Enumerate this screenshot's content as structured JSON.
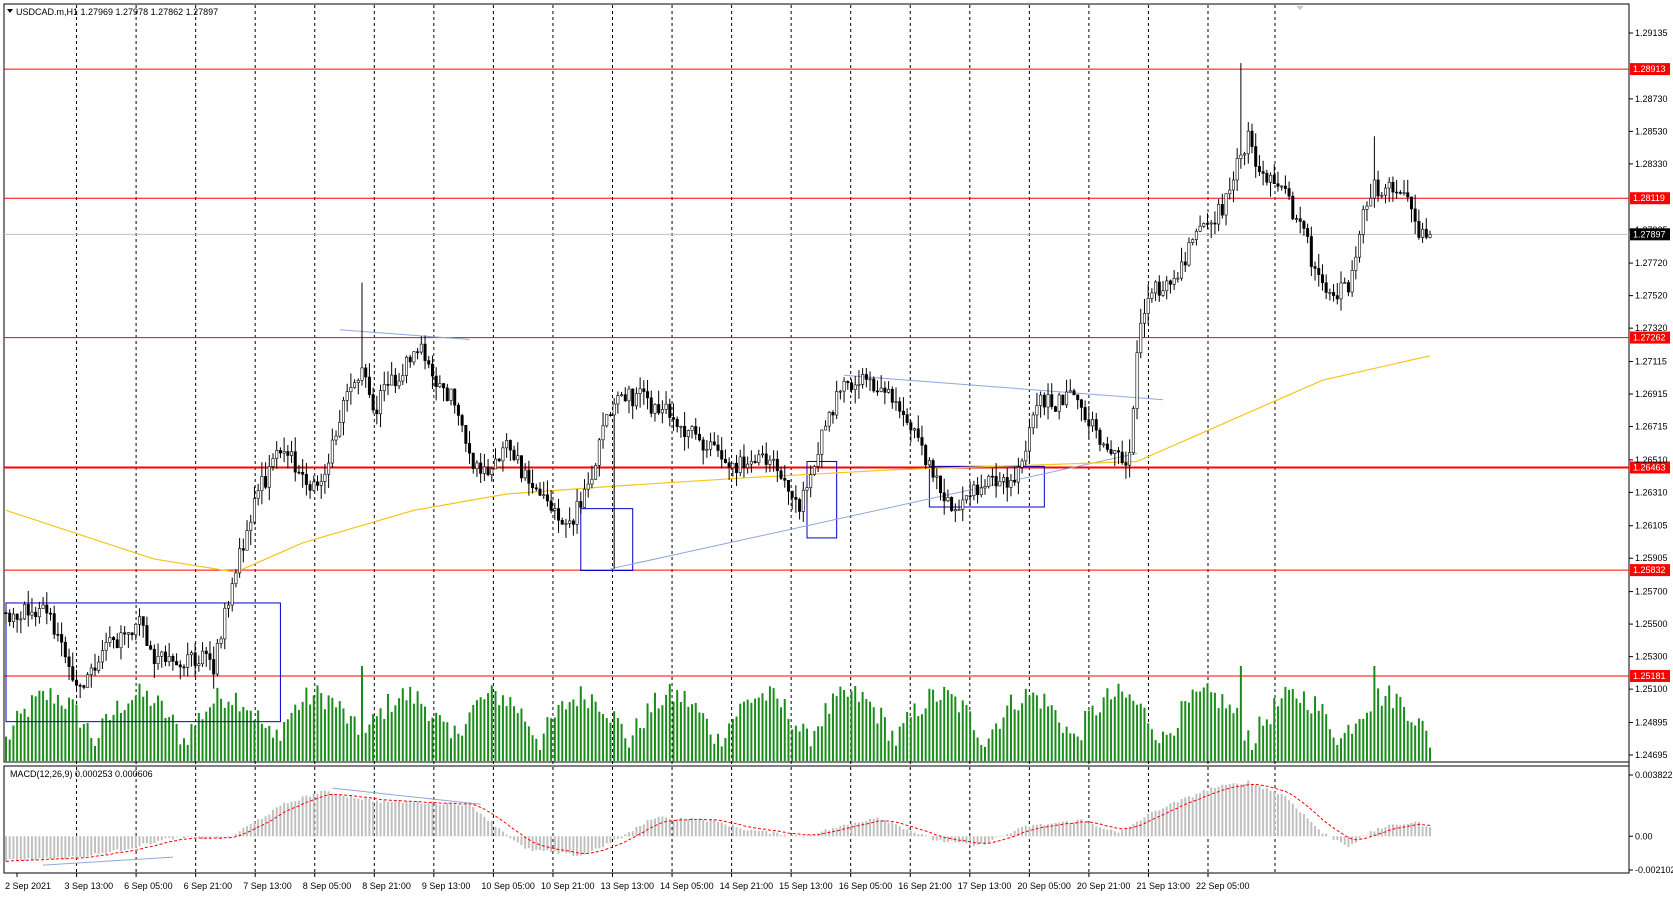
{
  "header": {
    "symbol_line": "USDCAD.m,H1  1.27969 1.27978 1.27862 1.27897",
    "macd_label": "MACD(12,26,9) 0.000253 0.000606"
  },
  "colors": {
    "level_line": "#ff0000",
    "bull_volume": "#1a8c1a",
    "candle": "#000000",
    "ma_line": "#f5c518",
    "box": "#0000cc",
    "trendline": "#8fa8d8",
    "macd_hist": "#c0c0c0",
    "macd_signal": "#ff0000",
    "grid": "#000000"
  },
  "price_axis": {
    "ticks": [
      "1.29135",
      "1.28730",
      "1.28530",
      "1.28330",
      "1.27925",
      "1.27720",
      "1.27520",
      "1.27320",
      "1.27115",
      "1.26915",
      "1.26715",
      "1.26510",
      "1.26310",
      "1.26105",
      "1.25905",
      "1.25700",
      "1.25500",
      "1.25300",
      "1.25100",
      "1.24895",
      "1.24695"
    ],
    "current_price": "1.27897"
  },
  "levels": [
    {
      "label": "1.28913",
      "price": 1.28913
    },
    {
      "label": "1.28119",
      "price": 1.28119
    },
    {
      "label": "1.27262",
      "price": 1.27262
    },
    {
      "label": "1.26463",
      "price": 1.26463
    },
    {
      "label": "1.25832",
      "price": 1.25832
    },
    {
      "label": "1.25181",
      "price": 1.25181
    }
  ],
  "macd_axis": {
    "ticks": [
      "0.003822",
      "0.00",
      "-0.002102"
    ]
  },
  "time_axis": {
    "labels": [
      "2 Sep 2021",
      "3 Sep 13:00",
      "6 Sep 05:00",
      "6 Sep 21:00",
      "7 Sep 13:00",
      "8 Sep 05:00",
      "8 Sep 21:00",
      "9 Sep 13:00",
      "10 Sep 05:00",
      "10 Sep 21:00",
      "13 Sep 13:00",
      "14 Sep 05:00",
      "14 Sep 21:00",
      "15 Sep 13:00",
      "16 Sep 05:00",
      "16 Sep 21:00",
      "17 Sep 13:00",
      "20 Sep 05:00",
      "20 Sep 21:00",
      "21 Sep 13:00",
      "22 Sep 05:00"
    ]
  },
  "chart_data": {
    "type": "candlestick",
    "symbol": "USDCAD.m",
    "timeframe": "H1",
    "ohlc_last": {
      "open": 1.27969,
      "high": 1.27978,
      "low": 1.27862,
      "close": 1.27897
    },
    "price_range": [
      1.24695,
      1.29135
    ],
    "path_keypoints": [
      [
        0,
        1.2557
      ],
      [
        10,
        1.256
      ],
      [
        15,
        1.254
      ],
      [
        18,
        1.251
      ],
      [
        22,
        1.2515
      ],
      [
        26,
        1.2535
      ],
      [
        32,
        1.254
      ],
      [
        36,
        1.2555
      ],
      [
        40,
        1.253
      ],
      [
        46,
        1.2525
      ],
      [
        52,
        1.253
      ],
      [
        56,
        1.2525
      ],
      [
        60,
        1.2565
      ],
      [
        64,
        1.26
      ],
      [
        68,
        1.263
      ],
      [
        72,
        1.265
      ],
      [
        76,
        1.2655
      ],
      [
        80,
        1.264
      ],
      [
        84,
        1.2635
      ],
      [
        88,
        1.266
      ],
      [
        92,
        1.269
      ],
      [
        96,
        1.271
      ],
      [
        99,
        1.268
      ],
      [
        101,
        1.269
      ],
      [
        104,
        1.27
      ],
      [
        108,
        1.271
      ],
      [
        112,
        1.272
      ],
      [
        116,
        1.27
      ],
      [
        120,
        1.269
      ],
      [
        124,
        1.266
      ],
      [
        128,
        1.264
      ],
      [
        132,
        1.2655
      ],
      [
        136,
        1.266
      ],
      [
        140,
        1.264
      ],
      [
        144,
        1.263
      ],
      [
        148,
        1.262
      ],
      [
        152,
        1.261
      ],
      [
        155,
        1.2625
      ],
      [
        158,
        1.264
      ],
      [
        162,
        1.268
      ],
      [
        166,
        1.269
      ],
      [
        170,
        1.269
      ],
      [
        174,
        1.2685
      ],
      [
        178,
        1.268
      ],
      [
        182,
        1.267
      ],
      [
        186,
        1.2665
      ],
      [
        190,
        1.266
      ],
      [
        194,
        1.265
      ],
      [
        200,
        1.2648
      ],
      [
        206,
        1.265
      ],
      [
        210,
        1.264
      ],
      [
        214,
        1.262
      ],
      [
        218,
        1.265
      ],
      [
        222,
        1.268
      ],
      [
        226,
        1.2695
      ],
      [
        230,
        1.27
      ],
      [
        234,
        1.2695
      ],
      [
        238,
        1.269
      ],
      [
        242,
        1.268
      ],
      [
        246,
        1.266
      ],
      [
        250,
        1.264
      ],
      [
        254,
        1.2625
      ],
      [
        258,
        1.2625
      ],
      [
        262,
        1.2635
      ],
      [
        266,
        1.264
      ],
      [
        270,
        1.264
      ],
      [
        274,
        1.2645
      ],
      [
        278,
        1.269
      ],
      [
        282,
        1.2685
      ],
      [
        286,
        1.269
      ],
      [
        290,
        1.2685
      ],
      [
        294,
        1.267
      ],
      [
        298,
        1.2655
      ],
      [
        300,
        1.265
      ],
      [
        303,
        1.2655
      ],
      [
        306,
        1.274
      ],
      [
        310,
        1.2755
      ],
      [
        314,
        1.276
      ],
      [
        318,
        1.2775
      ],
      [
        322,
        1.279
      ],
      [
        326,
        1.28
      ],
      [
        330,
        1.2815
      ],
      [
        333,
        1.284
      ],
      [
        335,
        1.285
      ],
      [
        338,
        1.2825
      ],
      [
        342,
        1.282
      ],
      [
        346,
        1.281
      ],
      [
        350,
        1.279
      ],
      [
        354,
        1.276
      ],
      [
        358,
        1.275
      ],
      [
        362,
        1.276
      ],
      [
        366,
        1.28
      ],
      [
        369,
        1.282
      ],
      [
        372,
        1.2815
      ],
      [
        376,
        1.282
      ],
      [
        379,
        1.281
      ],
      [
        381,
        1.279
      ],
      [
        384,
        1.279
      ]
    ],
    "ma_points": [
      [
        0,
        1.262
      ],
      [
        40,
        1.259
      ],
      [
        62,
        1.2582
      ],
      [
        80,
        1.26
      ],
      [
        110,
        1.262
      ],
      [
        135,
        1.263
      ],
      [
        165,
        1.2635
      ],
      [
        200,
        1.264
      ],
      [
        240,
        1.2645
      ],
      [
        280,
        1.2648
      ],
      [
        305,
        1.265
      ],
      [
        330,
        1.2675
      ],
      [
        355,
        1.27
      ],
      [
        384,
        1.2715
      ]
    ],
    "boxes": [
      {
        "x0": 0,
        "x1": 74,
        "p_hi": 1.2563,
        "p_lo": 1.249
      },
      {
        "x0": 155,
        "x1": 169,
        "p_hi": 1.2621,
        "p_lo": 1.2583
      },
      {
        "x0": 216,
        "x1": 224,
        "p_hi": 1.265,
        "p_lo": 1.2603
      },
      {
        "x0": 249,
        "x1": 280,
        "p_hi": 1.2647,
        "p_lo": 1.2622
      }
    ],
    "trendlines": [
      {
        "x0": 163,
        "p0": 1.2584,
        "x1": 305,
        "p1": 1.2655
      },
      {
        "x0": 226,
        "p0": 1.2703,
        "x1": 312,
        "p1": 1.2688
      },
      {
        "x0": 90,
        "p0": 1.2731,
        "x1": 125,
        "p1": 1.2725
      }
    ],
    "macd": {
      "current": 0.000253,
      "signal": 0.000606,
      "range": [
        -0.002102,
        0.003822
      ],
      "keypoints": [
        [
          0,
          -0.0015
        ],
        [
          20,
          -0.0013
        ],
        [
          30,
          -0.0009
        ],
        [
          45,
          -0.0001
        ],
        [
          60,
          -0.0001
        ],
        [
          75,
          0.002
        ],
        [
          85,
          0.0028
        ],
        [
          100,
          0.0022
        ],
        [
          125,
          0.002
        ],
        [
          140,
          -0.0008
        ],
        [
          155,
          -0.0012
        ],
        [
          165,
          -0.0002
        ],
        [
          175,
          0.0012
        ],
        [
          190,
          0.001
        ],
        [
          200,
          0.0004
        ],
        [
          215,
          0.0
        ],
        [
          225,
          0.0006
        ],
        [
          235,
          0.0012
        ],
        [
          250,
          -0.0002
        ],
        [
          262,
          -0.0006
        ],
        [
          275,
          0.0006
        ],
        [
          290,
          0.001
        ],
        [
          300,
          0.0002
        ],
        [
          310,
          0.0016
        ],
        [
          325,
          0.003
        ],
        [
          335,
          0.0034
        ],
        [
          345,
          0.0025
        ],
        [
          355,
          0.0002
        ],
        [
          362,
          -0.0006
        ],
        [
          370,
          0.0005
        ],
        [
          380,
          0.0009
        ],
        [
          384,
          0.0005
        ]
      ]
    },
    "volume_max": 1
  }
}
